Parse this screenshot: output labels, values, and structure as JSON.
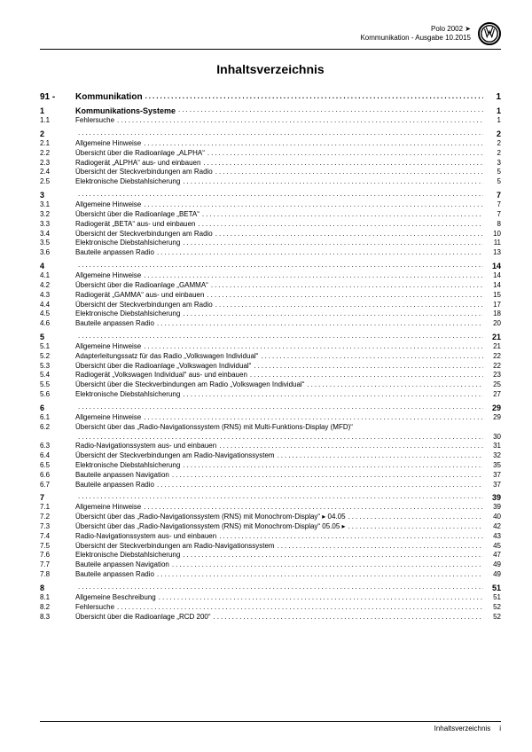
{
  "header": {
    "line1": "Polo 2002 ➤",
    "line2": "Kommunikation - Ausgabe 10.2015"
  },
  "title": "Inhaltsverzeichnis",
  "chapter": {
    "num": "91 -",
    "label": "Kommunikation",
    "page": "1"
  },
  "sections": [
    {
      "head": {
        "num": "1",
        "label": "Kommunikations-Systeme",
        "page": "1"
      },
      "entries": [
        {
          "num": "1.1",
          "label": "Fehlersuche",
          "page": "1"
        }
      ]
    },
    {
      "head": {
        "num": "2",
        "label": "",
        "page": "2"
      },
      "entries": [
        {
          "num": "2.1",
          "label": "Allgemeine Hinweise",
          "page": "2"
        },
        {
          "num": "2.2",
          "label": "Übersicht über die Radioanlage „ALPHA“",
          "page": "2"
        },
        {
          "num": "2.3",
          "label": "Radiogerät „ALPHA“ aus- und einbauen",
          "page": "3"
        },
        {
          "num": "2.4",
          "label": "Übersicht der Steckverbindungen am Radio",
          "page": "5"
        },
        {
          "num": "2.5",
          "label": "Elektronische Diebstahlsicherung",
          "page": "5"
        }
      ]
    },
    {
      "head": {
        "num": "3",
        "label": "",
        "page": "7"
      },
      "entries": [
        {
          "num": "3.1",
          "label": "Allgemeine Hinweise",
          "page": "7"
        },
        {
          "num": "3.2",
          "label": "Übersicht über die Radioanlage „BETA“",
          "page": "7"
        },
        {
          "num": "3.3",
          "label": "Radiogerät „BETA“ aus- und einbauen",
          "page": "8"
        },
        {
          "num": "3.4",
          "label": "Übersicht der Steckverbindungen am Radio",
          "page": "10"
        },
        {
          "num": "3.5",
          "label": "Elektronische Diebstahlsicherung",
          "page": "11"
        },
        {
          "num": "3.6",
          "label": "Bauteile anpassen Radio",
          "page": "13"
        }
      ]
    },
    {
      "head": {
        "num": "4",
        "label": "",
        "page": "14"
      },
      "entries": [
        {
          "num": "4.1",
          "label": "Allgemeine Hinweise",
          "page": "14"
        },
        {
          "num": "4.2",
          "label": "Übersicht über die Radioanlage „GAMMA“",
          "page": "14"
        },
        {
          "num": "4.3",
          "label": "Radiogerät „GAMMA“ aus- und einbauen",
          "page": "15"
        },
        {
          "num": "4.4",
          "label": "Übersicht der Steckverbindungen am Radio",
          "page": "17"
        },
        {
          "num": "4.5",
          "label": "Elektronische Diebstahlsicherung",
          "page": "18"
        },
        {
          "num": "4.6",
          "label": "Bauteile anpassen Radio",
          "page": "20"
        }
      ]
    },
    {
      "head": {
        "num": "5",
        "label": "",
        "page": "21"
      },
      "entries": [
        {
          "num": "5.1",
          "label": "Allgemeine Hinweise",
          "page": "21"
        },
        {
          "num": "5.2",
          "label": "Adapterleitungssatz für das Radio „Volkswagen Individual“",
          "page": "22"
        },
        {
          "num": "5.3",
          "label": "Übersicht über die Radioanlage „Volkswagen Individual“",
          "page": "22"
        },
        {
          "num": "5.4",
          "label": "Radiogerät „Volkswagen Individual“ aus- und einbauen",
          "page": "23"
        },
        {
          "num": "5.5",
          "label": "Übersicht über die Steckverbindungen am Radio „Volkswagen Individual“",
          "page": "25"
        },
        {
          "num": "5.6",
          "label": "Elektronische Diebstahlsicherung",
          "page": "27"
        }
      ]
    },
    {
      "head": {
        "num": "6",
        "label": "",
        "page": "29"
      },
      "entries": [
        {
          "num": "6.1",
          "label": "Allgemeine Hinweise",
          "page": "29"
        },
        {
          "num": "6.2",
          "label": "Übersicht über das „Radio-Navigationssystem (RNS) mit Multi-Funktions-Display (MFD)“",
          "page": "30",
          "multiline": true
        },
        {
          "num": "6.3",
          "label": "Radio-Navigationssystem aus- und einbauen",
          "page": "31"
        },
        {
          "num": "6.4",
          "label": "Übersicht der Steckverbindungen am Radio-Navigationssystem",
          "page": "32"
        },
        {
          "num": "6.5",
          "label": "Elektronische Diebstahlsicherung",
          "page": "35"
        },
        {
          "num": "6.6",
          "label": "Bauteile anpassen Navigation",
          "page": "37"
        },
        {
          "num": "6.7",
          "label": "Bauteile anpassen Radio",
          "page": "37"
        }
      ]
    },
    {
      "head": {
        "num": "7",
        "label": "",
        "page": "39"
      },
      "entries": [
        {
          "num": "7.1",
          "label": "Allgemeine Hinweise",
          "page": "39"
        },
        {
          "num": "7.2",
          "label": "Übersicht über das „Radio-Navigationssystem (RNS) mit Monochrom-Display“ ▸ 04.05",
          "page": "40"
        },
        {
          "num": "7.3",
          "label": "Übersicht über das „Radio-Navigationssystem (RNS) mit Monochrom-Display“ 05.05 ▸",
          "page": "42"
        },
        {
          "num": "7.4",
          "label": "Radio-Navigationssystem aus- und einbauen",
          "page": "43"
        },
        {
          "num": "7.5",
          "label": "Übersicht der Steckverbindungen am Radio-Navigationssystem",
          "page": "45"
        },
        {
          "num": "7.6",
          "label": "Elektronische Diebstahlsicherung",
          "page": "47"
        },
        {
          "num": "7.7",
          "label": "Bauteile anpassen Navigation",
          "page": "49"
        },
        {
          "num": "7.8",
          "label": "Bauteile anpassen Radio",
          "page": "49"
        }
      ]
    },
    {
      "head": {
        "num": "8",
        "label": "",
        "page": "51"
      },
      "entries": [
        {
          "num": "8.1",
          "label": "Allgemeine Beschreibung",
          "page": "51"
        },
        {
          "num": "8.2",
          "label": "Fehlersuche",
          "page": "52"
        },
        {
          "num": "8.3",
          "label": "Übersicht über die Radioanlage „RCD 200“",
          "page": "52"
        }
      ]
    }
  ],
  "footer": {
    "label": "Inhaltsverzeichnis",
    "page": "i"
  }
}
